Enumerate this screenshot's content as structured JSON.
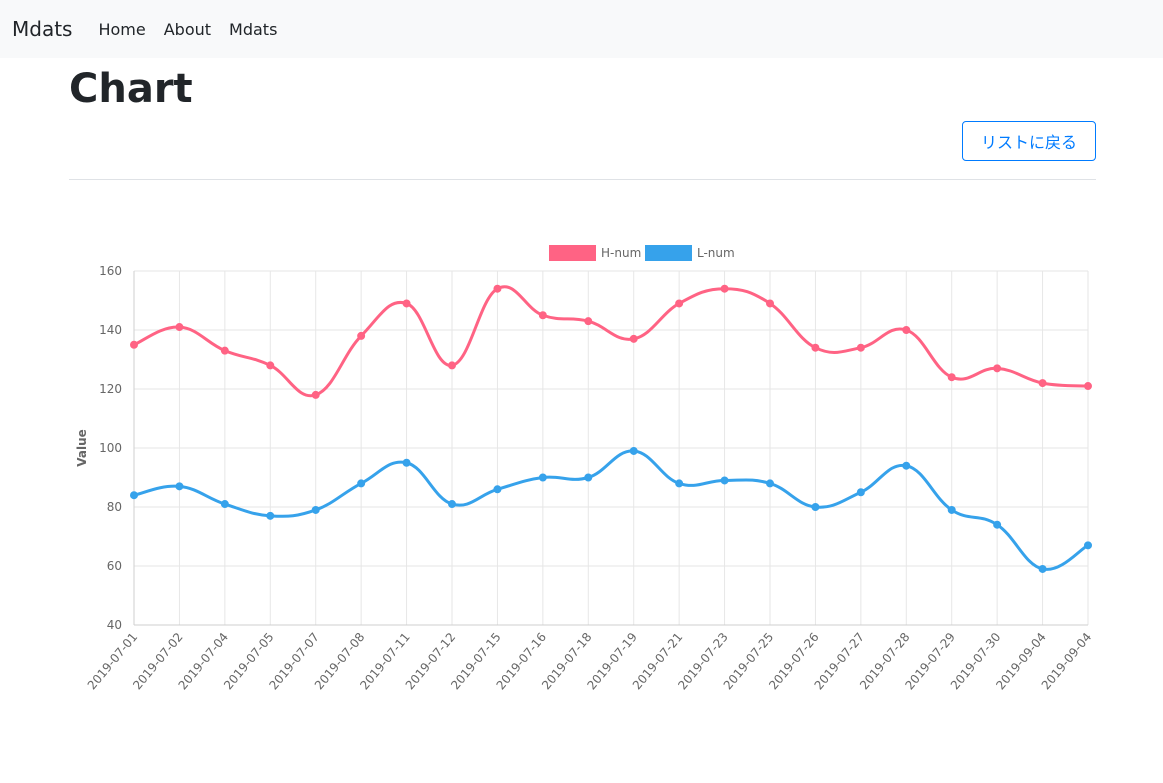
{
  "navbar": {
    "brand": "Mdats",
    "links": [
      {
        "label": "Home"
      },
      {
        "label": "About"
      },
      {
        "label": "Mdats"
      }
    ]
  },
  "page": {
    "title": "Chart",
    "back_button_label": "リストに戻る"
  },
  "colors": {
    "h_series": "#ff6384",
    "l_series": "#36a2eb",
    "button": "#007bff",
    "navbar_bg": "#f8f9fa"
  },
  "chart_data": {
    "type": "line",
    "title": "",
    "xlabel": "",
    "ylabel": "Value",
    "ylim": [
      40,
      160
    ],
    "yticks": [
      40,
      60,
      80,
      100,
      120,
      140,
      160
    ],
    "legend": "top",
    "grid": true,
    "categories": [
      "2019-07-01",
      "2019-07-02",
      "2019-07-04",
      "2019-07-05",
      "2019-07-07",
      "2019-07-08",
      "2019-07-11",
      "2019-07-12",
      "2019-07-15",
      "2019-07-16",
      "2019-07-18",
      "2019-07-19",
      "2019-07-21",
      "2019-07-23",
      "2019-07-25",
      "2019-07-26",
      "2019-07-27",
      "2019-07-28",
      "2019-07-29",
      "2019-07-30",
      "2019-09-04",
      "2019-09-04"
    ],
    "series": [
      {
        "name": "H-num",
        "color": "#ff6384",
        "values": [
          135,
          141,
          133,
          128,
          118,
          138,
          149,
          128,
          154,
          145,
          143,
          137,
          149,
          154,
          149,
          134,
          134,
          140,
          124,
          127,
          122,
          121
        ]
      },
      {
        "name": "L-num",
        "color": "#36a2eb",
        "values": [
          84,
          87,
          81,
          77,
          79,
          88,
          95,
          81,
          86,
          90,
          90,
          99,
          88,
          89,
          88,
          80,
          85,
          94,
          79,
          74,
          59,
          67
        ]
      }
    ]
  }
}
